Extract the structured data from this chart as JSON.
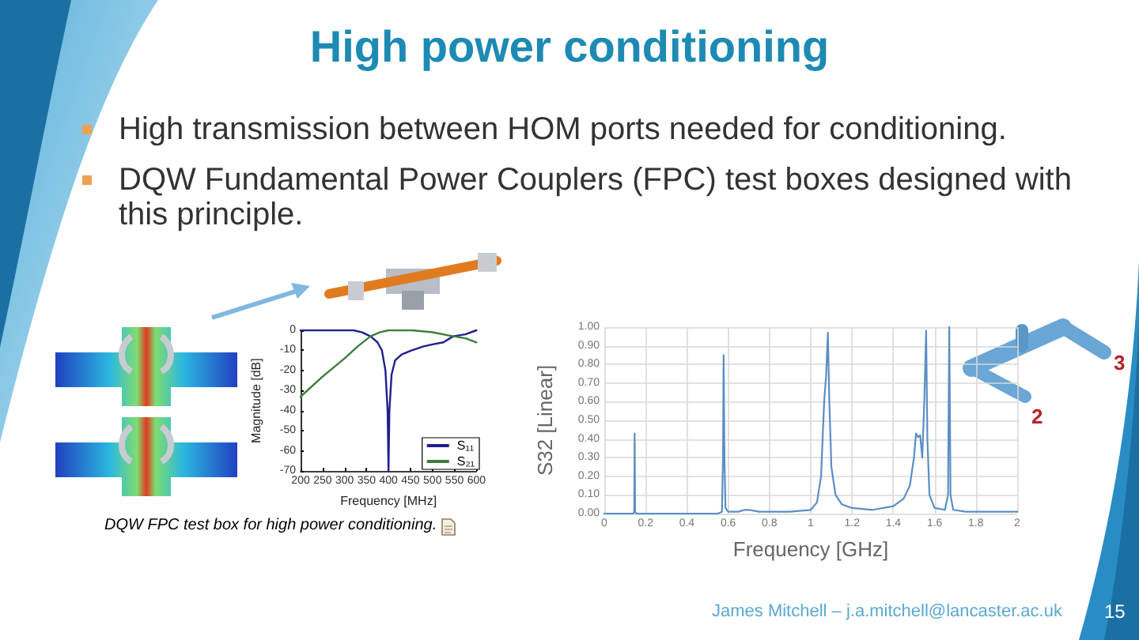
{
  "chart_data": [
    {
      "type": "line",
      "title": "High power conditioning",
      "xlabel": "Frequency [MHz]",
      "ylabel": "Magnitude [dB]",
      "xlim": [
        200,
        600
      ],
      "xticks": [
        200,
        250,
        300,
        350,
        400,
        450,
        500,
        550,
        600
      ],
      "ylim": [
        -70,
        0
      ],
      "yticks": [
        -70,
        -60,
        -50,
        -40,
        -30,
        -20,
        -10,
        0
      ],
      "legend": "bottom right",
      "series": [
        {
          "name": "S₁₁",
          "color": "#1f1f8f",
          "x": [
            200,
            260,
            300,
            320,
            340,
            359,
            375,
            385,
            393,
            398,
            400,
            402,
            407,
            415,
            430,
            453,
            480,
            500,
            525,
            547,
            575,
            600
          ],
          "values": [
            0,
            0,
            0,
            0,
            -1,
            -3,
            -6,
            -10,
            -20,
            -40,
            -70,
            -40,
            -22,
            -15,
            -12,
            -10,
            -8,
            -7,
            -6,
            -3,
            -2,
            0
          ]
        },
        {
          "name": "S₂₁",
          "color": "#3d7d3d",
          "x": [
            200,
            250,
            300,
            330,
            359,
            380,
            400,
            453,
            500,
            547,
            575,
            600
          ],
          "values": [
            -33,
            -23,
            -14,
            -8,
            -3,
            -1,
            0,
            0,
            -1,
            -3,
            -4,
            -6
          ]
        }
      ],
      "annotations": [
        "High transmission between HOM ports needed for conditioning.",
        "DQW Fundamental Power Couplers (FPC) test boxes designed with this principle.",
        "DQW FPC test box for high power conditioning.",
        "James Mitchell – j.a.mitchell@lancaster.ac.uk",
        "15"
      ]
    },
    {
      "type": "line",
      "xlabel": "Frequency [GHz]",
      "ylabel": "S32 [Linear]",
      "xlim": [
        0,
        2
      ],
      "xticks": [
        0,
        0.2,
        0.4,
        0.6,
        0.8,
        1,
        1.2,
        1.4,
        1.6,
        1.8,
        2
      ],
      "ylim": [
        0,
        1
      ],
      "yticks": [
        {
          "value": 0,
          "label": "0.00"
        },
        {
          "value": 0.1,
          "label": "0.10"
        },
        {
          "value": 0.2,
          "label": "0.20"
        },
        {
          "value": 0.3,
          "label": "0.30"
        },
        {
          "value": 0.4,
          "label": "0.40"
        },
        {
          "value": 0.5,
          "label": "0.50"
        },
        {
          "value": 0.6,
          "label": "0.60"
        },
        {
          "value": 0.7,
          "label": "0.70"
        },
        {
          "value": 0.8,
          "label": "0.80"
        },
        {
          "value": 0.9,
          "label": "0.90"
        },
        {
          "value": 1,
          "label": "1.00"
        }
      ],
      "grid": true,
      "color": "#5b8ec4",
      "x": [
        0,
        0.14,
        0.145,
        0.147,
        0.149,
        0.155,
        0.55,
        0.57,
        0.575,
        0.578,
        0.582,
        0.587,
        0.6,
        0.65,
        0.68,
        0.7,
        0.75,
        0.9,
        1.0,
        1.03,
        1.05,
        1.065,
        1.075,
        1.083,
        1.09,
        1.1,
        1.12,
        1.15,
        1.2,
        1.3,
        1.4,
        1.45,
        1.48,
        1.5,
        1.51,
        1.52,
        1.53,
        1.54,
        1.55,
        1.559,
        1.565,
        1.575,
        1.6,
        1.65,
        1.665,
        1.671,
        1.677,
        1.69,
        1.75,
        1.9,
        2
      ],
      "values": [
        0,
        0,
        0.01,
        0.43,
        0.01,
        0,
        0,
        0.01,
        0.3,
        0.85,
        0.3,
        0.03,
        0.01,
        0.01,
        0.02,
        0.02,
        0.01,
        0.01,
        0.02,
        0.06,
        0.2,
        0.6,
        0.75,
        0.97,
        0.6,
        0.25,
        0.1,
        0.05,
        0.03,
        0.02,
        0.04,
        0.08,
        0.15,
        0.3,
        0.43,
        0.41,
        0.42,
        0.3,
        0.6,
        0.98,
        0.4,
        0.1,
        0.03,
        0.02,
        0.1,
        1.0,
        0.1,
        0.02,
        0.01,
        0.01,
        0.01
      ],
      "annotations": [
        "2",
        "3"
      ]
    }
  ]
}
